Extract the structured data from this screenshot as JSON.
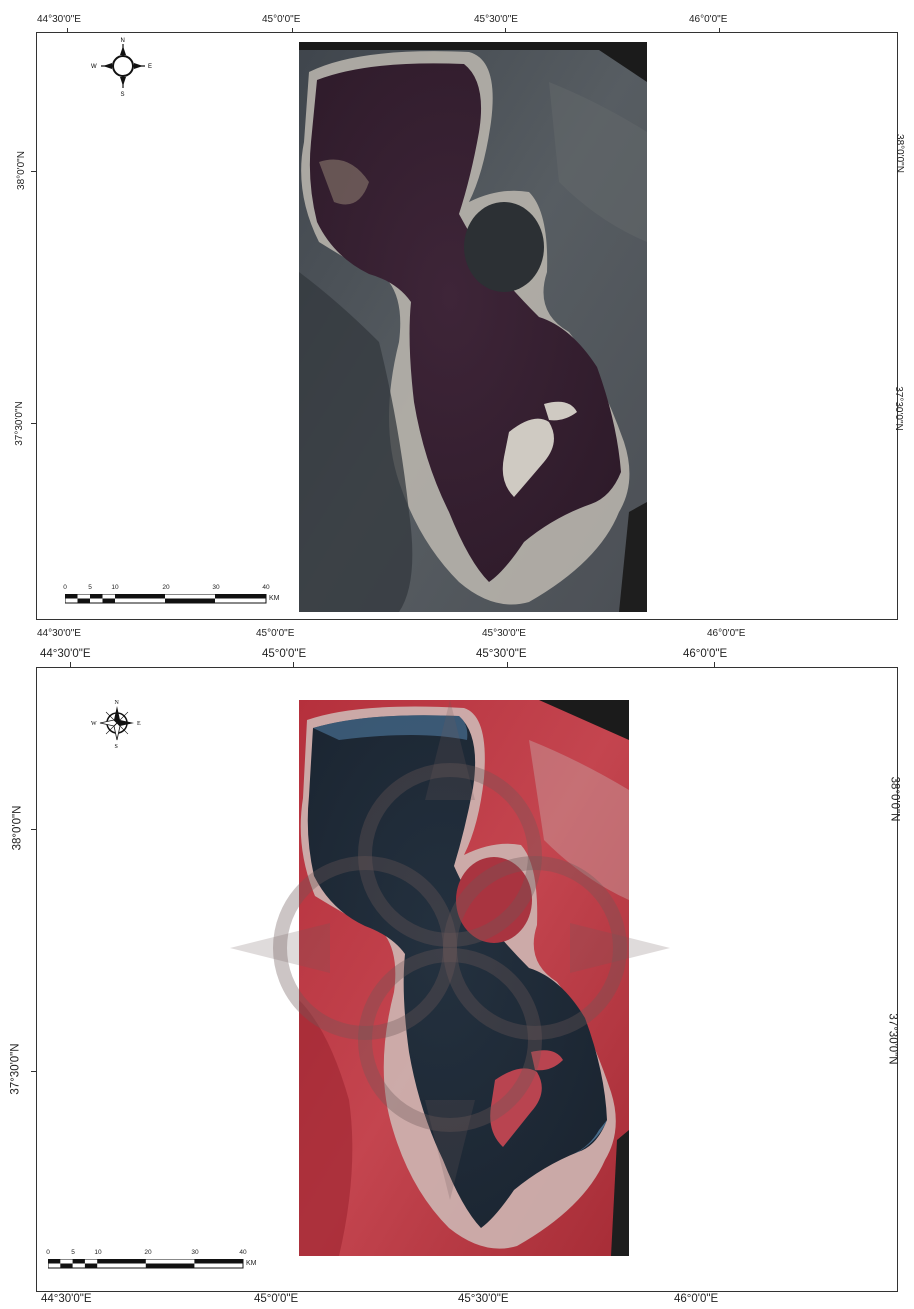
{
  "top_map": {
    "x_labels_top": [
      "44°30'0\"E",
      "45°0'0\"E",
      "45°30'0\"E",
      "46°0'0\"E"
    ],
    "x_labels_bottom": [
      "44°30'0\"E",
      "45°0'0\"E",
      "45°30'0\"E",
      "46°0'0\"E"
    ],
    "y_labels_left": [
      "38°0'0\"N",
      "37°30'0\"N"
    ],
    "y_labels_right": [
      "38°0'0\"N",
      "37°30'0\"N"
    ],
    "compass": {
      "n": "N",
      "s": "S",
      "e": "E",
      "w": "W"
    },
    "scale": {
      "ticks": [
        "0",
        "5",
        "10",
        "20",
        "30",
        "40"
      ],
      "unit": "KM"
    },
    "image_style": "natural-color"
  },
  "bottom_map": {
    "x_labels_top": [
      "44°30'0\"E",
      "45°0'0\"E",
      "45°30'0\"E",
      "46°0'0\"E"
    ],
    "x_labels_bottom": [
      "44°30'0\"E",
      "45°0'0\"E",
      "45°30'0\"E",
      "46°0'0\"E"
    ],
    "y_labels_left": [
      "38°0'0\"N",
      "37°30'0\"N"
    ],
    "y_labels_right": [
      "38°0'0\"N",
      "37°30'0\"N"
    ],
    "compass": {
      "n": "N",
      "s": "S",
      "e": "E",
      "w": "W"
    },
    "scale": {
      "ticks": [
        "0",
        "5",
        "10",
        "20",
        "30",
        "40"
      ],
      "unit": "KM"
    },
    "image_style": "false-color"
  },
  "colors": {
    "frame": "#333333",
    "lake_top": "#3a2033",
    "land_top": "#4a5058",
    "shore_top": "#c8c4bc",
    "lake_bottom": "#1e2a36",
    "land_bottom": "#b8323e",
    "shore_bottom": "#c9b2ae",
    "nodata": "#1c1c1c",
    "watermark": "#6d5a5a"
  }
}
